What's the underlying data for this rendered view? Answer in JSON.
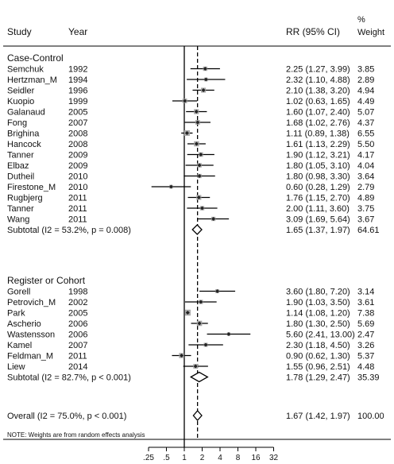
{
  "chart_data": {
    "type": "forest",
    "header": {
      "study": "Study",
      "year": "Year",
      "rr": "RR (95% CI)",
      "weight_line1": "%",
      "weight_line2": "Weight"
    },
    "x_axis": {
      "scale": "log",
      "reference_line": 1,
      "overall_line": 1.67,
      "ticks": [
        {
          "v": 0.25,
          "label": ".25"
        },
        {
          "v": 0.5,
          "label": ".5"
        },
        {
          "v": 1,
          "label": "1"
        },
        {
          "v": 2,
          "label": "2"
        },
        {
          "v": 4,
          "label": "4"
        },
        {
          "v": 8,
          "label": "8"
        },
        {
          "v": 16,
          "label": "16"
        },
        {
          "v": 32,
          "label": "32"
        }
      ]
    },
    "groups": [
      {
        "label": "Case-Control",
        "studies": [
          {
            "study": "Semchuk",
            "year": "1992",
            "rr": 2.25,
            "lo": 1.27,
            "hi": 3.99,
            "ci_text": "2.25 (1.27, 3.99)",
            "weight": "3.85"
          },
          {
            "study": "Hertzman_M",
            "year": "1994",
            "rr": 2.32,
            "lo": 1.1,
            "hi": 4.88,
            "ci_text": "2.32 (1.10, 4.88)",
            "weight": "2.89"
          },
          {
            "study": "Seidler",
            "year": "1996",
            "rr": 2.1,
            "lo": 1.38,
            "hi": 3.2,
            "ci_text": "2.10 (1.38, 3.20)",
            "weight": "4.94"
          },
          {
            "study": "Kuopio",
            "year": "1999",
            "rr": 1.02,
            "lo": 0.63,
            "hi": 1.65,
            "ci_text": "1.02 (0.63, 1.65)",
            "weight": "4.49"
          },
          {
            "study": "Galanaud",
            "year": "2005",
            "rr": 1.6,
            "lo": 1.07,
            "hi": 2.4,
            "ci_text": "1.60 (1.07, 2.40)",
            "weight": "5.07"
          },
          {
            "study": "Fong",
            "year": "2007",
            "rr": 1.68,
            "lo": 1.02,
            "hi": 2.76,
            "ci_text": "1.68 (1.02, 2.76)",
            "weight": "4.37"
          },
          {
            "study": "Brighina",
            "year": "2008",
            "rr": 1.11,
            "lo": 0.89,
            "hi": 1.38,
            "ci_text": "1.11 (0.89, 1.38)",
            "weight": "6.55"
          },
          {
            "study": "Hancock",
            "year": "2008",
            "rr": 1.61,
            "lo": 1.13,
            "hi": 2.29,
            "ci_text": "1.61 (1.13, 2.29)",
            "weight": "5.50"
          },
          {
            "study": "Tanner",
            "year": "2009",
            "rr": 1.9,
            "lo": 1.12,
            "hi": 3.21,
            "ci_text": "1.90 (1.12, 3.21)",
            "weight": "4.17"
          },
          {
            "study": "Elbaz",
            "year": "2009",
            "rr": 1.8,
            "lo": 1.05,
            "hi": 3.1,
            "ci_text": "1.80 (1.05, 3.10)",
            "weight": "4.04"
          },
          {
            "study": "Dutheil",
            "year": "2010",
            "rr": 1.8,
            "lo": 0.98,
            "hi": 3.3,
            "ci_text": "1.80 (0.98, 3.30)",
            "weight": "3.64"
          },
          {
            "study": "Firestone_M",
            "year": "2010",
            "rr": 0.6,
            "lo": 0.28,
            "hi": 1.29,
            "ci_text": "0.60 (0.28, 1.29)",
            "weight": "2.79"
          },
          {
            "study": "Rugbjerg",
            "year": "2011",
            "rr": 1.76,
            "lo": 1.15,
            "hi": 2.7,
            "ci_text": "1.76 (1.15, 2.70)",
            "weight": "4.89"
          },
          {
            "study": "Tanner",
            "year": "2011",
            "rr": 2.0,
            "lo": 1.11,
            "hi": 3.6,
            "ci_text": "2.00 (1.11, 3.60)",
            "weight": "3.75"
          },
          {
            "study": "Wang",
            "year": "2011",
            "rr": 3.09,
            "lo": 1.69,
            "hi": 5.64,
            "ci_text": "3.09 (1.69, 5.64)",
            "weight": "3.67"
          }
        ],
        "subtotal": {
          "label": "Subtotal  (I2 = 53.2%, p = 0.008)",
          "rr": 1.65,
          "lo": 1.37,
          "hi": 1.97,
          "ci_text": "1.65 (1.37, 1.97)",
          "weight": "64.61"
        }
      },
      {
        "label": "Register or Cohort",
        "studies": [
          {
            "study": "Gorell",
            "year": "1998",
            "rr": 3.6,
            "lo": 1.8,
            "hi": 7.2,
            "ci_text": "3.60 (1.80, 7.20)",
            "weight": "3.14"
          },
          {
            "study": "Petrovich_M",
            "year": "2002",
            "rr": 1.9,
            "lo": 1.03,
            "hi": 3.5,
            "ci_text": "1.90 (1.03, 3.50)",
            "weight": "3.61"
          },
          {
            "study": "Park",
            "year": "2005",
            "rr": 1.14,
            "lo": 1.08,
            "hi": 1.2,
            "ci_text": "1.14 (1.08, 1.20)",
            "weight": "7.38"
          },
          {
            "study": "Ascherio",
            "year": "2006",
            "rr": 1.8,
            "lo": 1.3,
            "hi": 2.5,
            "ci_text": "1.80 (1.30, 2.50)",
            "weight": "5.69"
          },
          {
            "study": "Wastensson",
            "year": "2006",
            "rr": 5.6,
            "lo": 2.41,
            "hi": 13.0,
            "ci_text": "5.60 (2.41, 13.00)",
            "weight": "2.47"
          },
          {
            "study": "Kamel",
            "year": "2007",
            "rr": 2.3,
            "lo": 1.18,
            "hi": 4.5,
            "ci_text": "2.30 (1.18, 4.50)",
            "weight": "3.26"
          },
          {
            "study": "Feldman_M",
            "year": "2011",
            "rr": 0.9,
            "lo": 0.62,
            "hi": 1.3,
            "ci_text": "0.90 (0.62, 1.30)",
            "weight": "5.37"
          },
          {
            "study": "Liew",
            "year": "2014",
            "rr": 1.55,
            "lo": 0.96,
            "hi": 2.51,
            "ci_text": "1.55 (0.96, 2.51)",
            "weight": "4.48"
          }
        ],
        "subtotal": {
          "label": "Subtotal  (I2 = 82.7%, p < 0.001)",
          "rr": 1.78,
          "lo": 1.29,
          "hi": 2.47,
          "ci_text": "1.78 (1.29, 2.47)",
          "weight": "35.39"
        }
      }
    ],
    "overall": {
      "label": "Overall  (I2 = 75.0%, p < 0.001)",
      "rr": 1.67,
      "lo": 1.42,
      "hi": 1.97,
      "ci_text": "1.67 (1.42, 1.97)",
      "weight": "100.00"
    },
    "note": "NOTE: Weights are from random effects analysis"
  }
}
